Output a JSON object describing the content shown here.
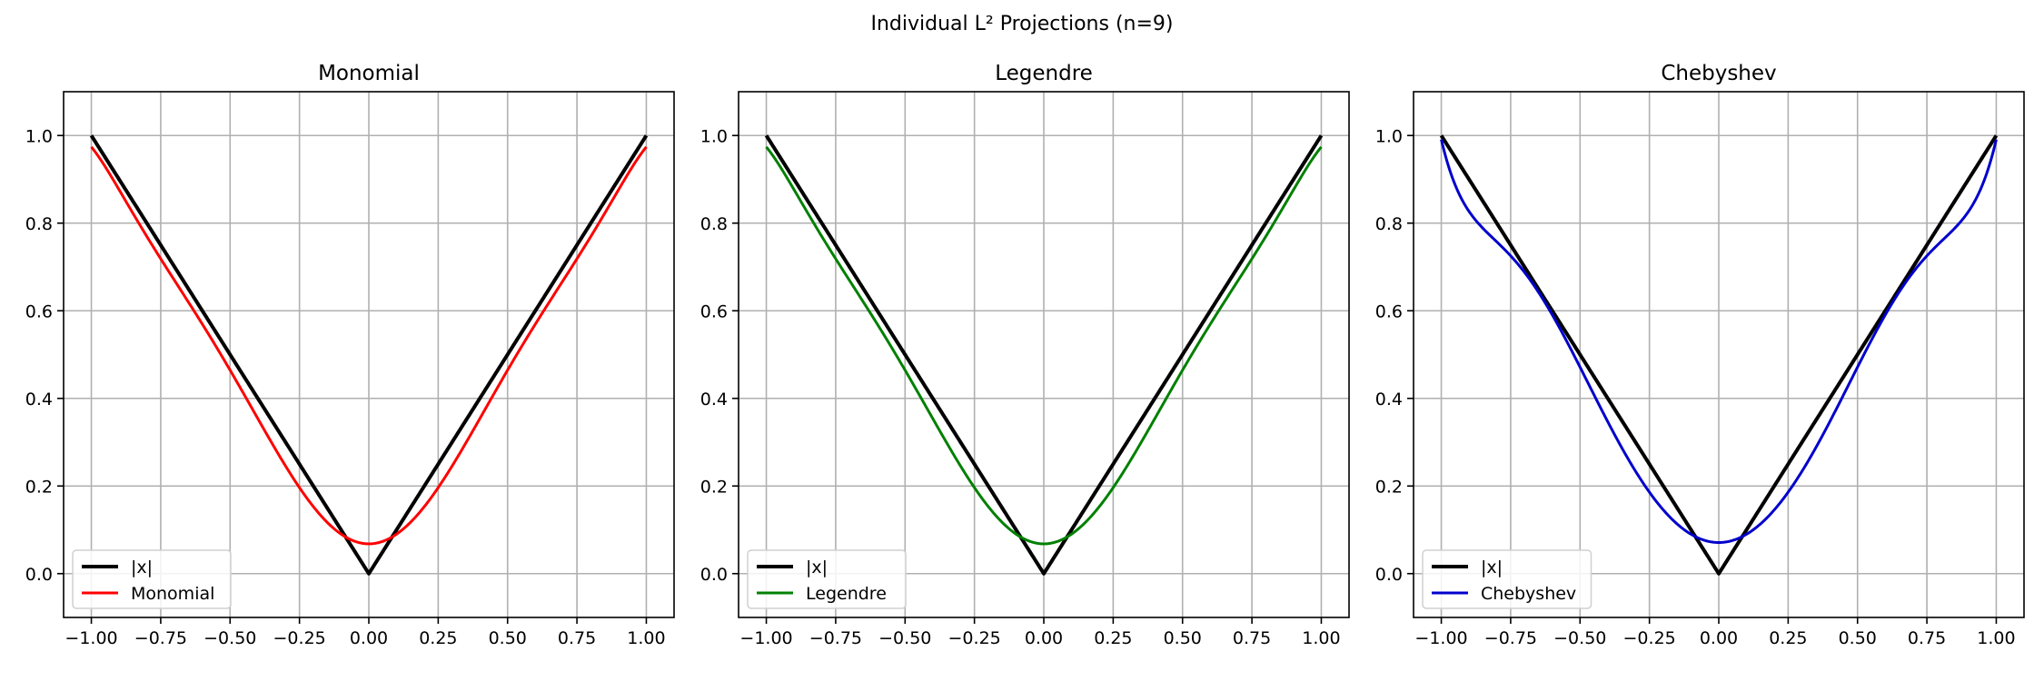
{
  "figure": {
    "suptitle": "Individual L² Projections (n=9)"
  },
  "colors": {
    "target": "#000000",
    "grid": "#b0b0b0",
    "axes": "#000000"
  },
  "chart_data": [
    {
      "type": "line",
      "title": "Monomial",
      "xlabel": "",
      "ylabel": "",
      "xlim": [
        -1.1,
        1.1
      ],
      "ylim": [
        -0.1,
        1.1
      ],
      "xticks": [
        -1.0,
        -0.75,
        -0.5,
        -0.25,
        0.0,
        0.25,
        0.5,
        0.75,
        1.0
      ],
      "xtick_labels": [
        "−1.00",
        "−0.75",
        "−0.50",
        "−0.25",
        "0.00",
        "0.25",
        "0.50",
        "0.75",
        "1.00"
      ],
      "yticks": [
        0.0,
        0.2,
        0.4,
        0.6,
        0.8,
        1.0
      ],
      "ytick_labels": [
        "0.0",
        "0.2",
        "0.4",
        "0.6",
        "0.8",
        "1.0"
      ],
      "grid": true,
      "legend_position": "lower-left",
      "series": [
        {
          "name": "|x|",
          "color": "#000000",
          "function": "abs",
          "x_range": [
            -1,
            1
          ]
        },
        {
          "name": "Monomial",
          "color": "#ff0000",
          "function": "poly_even",
          "coefficients": [
            0.068,
            2.256,
            -3.44,
            3.35,
            -1.26
          ],
          "x_range": [
            -1,
            1
          ]
        }
      ]
    },
    {
      "type": "line",
      "title": "Legendre",
      "xlabel": "",
      "ylabel": "",
      "xlim": [
        -1.1,
        1.1
      ],
      "ylim": [
        -0.1,
        1.1
      ],
      "xticks": [
        -1.0,
        -0.75,
        -0.5,
        -0.25,
        0.0,
        0.25,
        0.5,
        0.75,
        1.0
      ],
      "xtick_labels": [
        "−1.00",
        "−0.75",
        "−0.50",
        "−0.25",
        "0.00",
        "0.25",
        "0.50",
        "0.75",
        "1.00"
      ],
      "yticks": [
        0.0,
        0.2,
        0.4,
        0.6,
        0.8,
        1.0
      ],
      "ytick_labels": [
        "0.0",
        "0.2",
        "0.4",
        "0.6",
        "0.8",
        "1.0"
      ],
      "grid": true,
      "legend_position": "lower-left",
      "series": [
        {
          "name": "|x|",
          "color": "#000000",
          "function": "abs",
          "x_range": [
            -1,
            1
          ]
        },
        {
          "name": "Legendre",
          "color": "#008000",
          "function": "poly_even",
          "coefficients": [
            0.068,
            2.256,
            -3.44,
            3.35,
            -1.26
          ],
          "x_range": [
            -1,
            1
          ]
        }
      ]
    },
    {
      "type": "line",
      "title": "Chebyshev",
      "xlabel": "",
      "ylabel": "",
      "xlim": [
        -1.1,
        1.1
      ],
      "ylim": [
        -0.1,
        1.1
      ],
      "xticks": [
        -1.0,
        -0.75,
        -0.5,
        -0.25,
        0.0,
        0.25,
        0.5,
        0.75,
        1.0
      ],
      "xtick_labels": [
        "−1.00",
        "−0.75",
        "−0.50",
        "−0.25",
        "0.00",
        "0.25",
        "0.50",
        "0.75",
        "1.00"
      ],
      "yticks": [
        0.0,
        0.2,
        0.4,
        0.6,
        0.8,
        1.0
      ],
      "ytick_labels": [
        "0.0",
        "0.2",
        "0.4",
        "0.6",
        "0.8",
        "1.0"
      ],
      "grid": true,
      "legend_position": "lower-left",
      "series": [
        {
          "name": "|x|",
          "color": "#000000",
          "function": "abs",
          "x_range": [
            -1,
            1
          ]
        },
        {
          "name": "Chebyshev",
          "color": "#0000cc",
          "function": "poly_even",
          "coefficients": [
            0.071,
            1.9,
            -0.89,
            -1.59,
            1.5
          ],
          "x_range": [
            -1,
            1
          ]
        }
      ]
    }
  ]
}
